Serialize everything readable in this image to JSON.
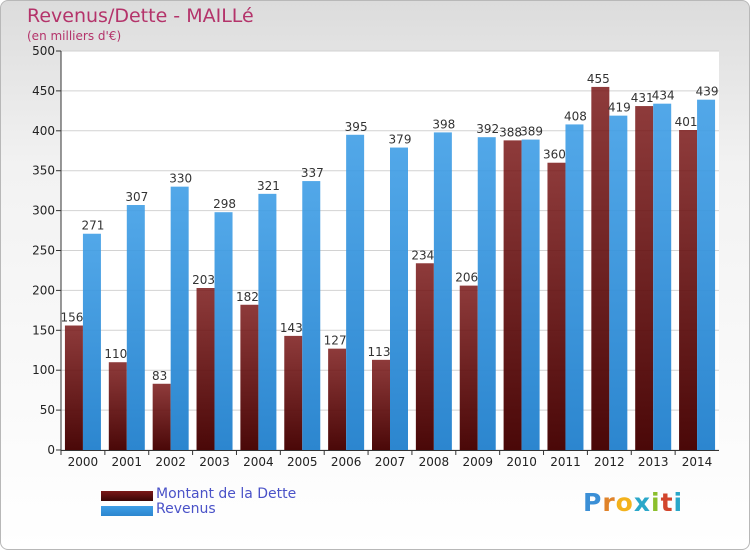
{
  "title": "Revenus/Dette - MAILLé",
  "subtitle": "(en milliers d'€)",
  "colors": {
    "dette": "#7a1818",
    "revenus": "#3f9ee6",
    "title": "#b4336a",
    "legend_text": "#4a52c8"
  },
  "legend": [
    {
      "label": "Montant de la Dette",
      "color": "#7a1818"
    },
    {
      "label": "Revenus",
      "color": "#3f9ee6"
    }
  ],
  "logo": {
    "text": "Proxiti"
  },
  "chart_data": {
    "type": "bar",
    "title": "Revenus/Dette - MAILLé",
    "subtitle": "(en milliers d'€)",
    "categories": [
      "2000",
      "2001",
      "2002",
      "2003",
      "2004",
      "2005",
      "2006",
      "2007",
      "2008",
      "2009",
      "2010",
      "2011",
      "2012",
      "2013",
      "2014"
    ],
    "series": [
      {
        "name": "Montant de la Dette",
        "values": [
          156,
          110,
          83,
          203,
          182,
          143,
          127,
          113,
          234,
          206,
          388,
          360,
          455,
          431,
          401
        ]
      },
      {
        "name": "Revenus",
        "values": [
          271,
          307,
          330,
          298,
          321,
          337,
          395,
          379,
          398,
          392,
          389,
          408,
          419,
          434,
          439
        ]
      }
    ],
    "ylim": [
      0,
      500
    ],
    "yticks": [
      0,
      50,
      100,
      150,
      200,
      250,
      300,
      350,
      400,
      450,
      500
    ],
    "grid": true,
    "legend_position": "bottom-left"
  }
}
